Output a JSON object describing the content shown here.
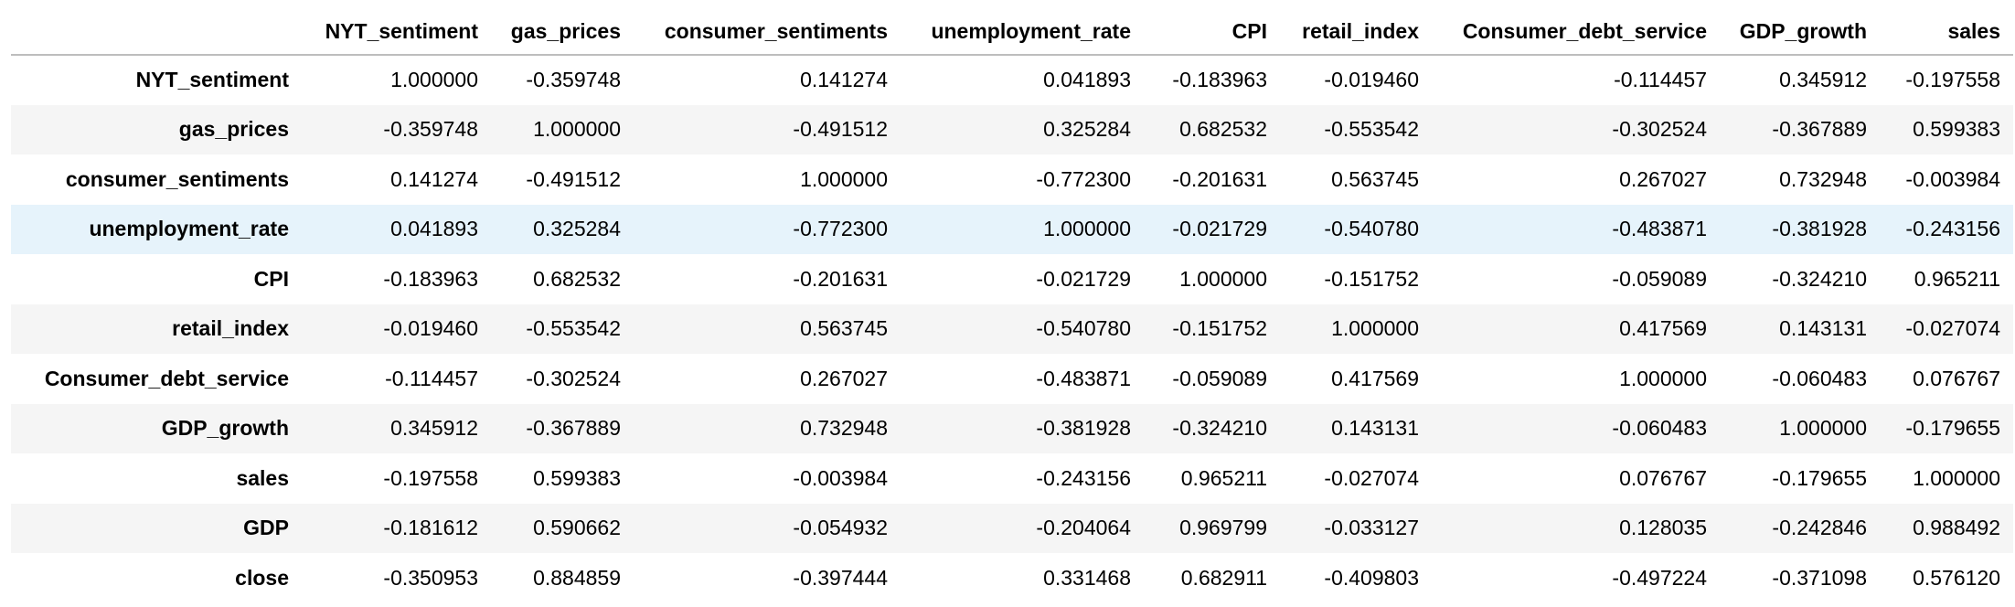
{
  "table": {
    "columns": [
      "",
      "NYT_sentiment",
      "gas_prices",
      "consumer_sentiments",
      "unemployment_rate",
      "CPI",
      "retail_index",
      "Consumer_debt_service",
      "GDP_growth",
      "sales"
    ],
    "highlight_row": 3,
    "rows": [
      {
        "label": "NYT_sentiment",
        "values": [
          "1.000000",
          "-0.359748",
          "0.141274",
          "0.041893",
          "-0.183963",
          "-0.019460",
          "-0.114457",
          "0.345912",
          "-0.197558"
        ]
      },
      {
        "label": "gas_prices",
        "values": [
          "-0.359748",
          "1.000000",
          "-0.491512",
          "0.325284",
          "0.682532",
          "-0.553542",
          "-0.302524",
          "-0.367889",
          "0.599383"
        ]
      },
      {
        "label": "consumer_sentiments",
        "values": [
          "0.141274",
          "-0.491512",
          "1.000000",
          "-0.772300",
          "-0.201631",
          "0.563745",
          "0.267027",
          "0.732948",
          "-0.003984"
        ]
      },
      {
        "label": "unemployment_rate",
        "values": [
          "0.041893",
          "0.325284",
          "-0.772300",
          "1.000000",
          "-0.021729",
          "-0.540780",
          "-0.483871",
          "-0.381928",
          "-0.243156"
        ]
      },
      {
        "label": "CPI",
        "values": [
          "-0.183963",
          "0.682532",
          "-0.201631",
          "-0.021729",
          "1.000000",
          "-0.151752",
          "-0.059089",
          "-0.324210",
          "0.965211"
        ]
      },
      {
        "label": "retail_index",
        "values": [
          "-0.019460",
          "-0.553542",
          "0.563745",
          "-0.540780",
          "-0.151752",
          "1.000000",
          "0.417569",
          "0.143131",
          "-0.027074"
        ]
      },
      {
        "label": "Consumer_debt_service",
        "values": [
          "-0.114457",
          "-0.302524",
          "0.267027",
          "-0.483871",
          "-0.059089",
          "0.417569",
          "1.000000",
          "-0.060483",
          "0.076767"
        ]
      },
      {
        "label": "GDP_growth",
        "values": [
          "0.345912",
          "-0.367889",
          "0.732948",
          "-0.381928",
          "-0.324210",
          "0.143131",
          "-0.060483",
          "1.000000",
          "-0.179655"
        ]
      },
      {
        "label": "sales",
        "values": [
          "-0.197558",
          "0.599383",
          "-0.003984",
          "-0.243156",
          "0.965211",
          "-0.027074",
          "0.076767",
          "-0.179655",
          "1.000000"
        ]
      },
      {
        "label": "GDP",
        "values": [
          "-0.181612",
          "0.590662",
          "-0.054932",
          "-0.204064",
          "0.969799",
          "-0.033127",
          "0.128035",
          "-0.242846",
          "0.988492"
        ]
      },
      {
        "label": "close",
        "values": [
          "-0.350953",
          "0.884859",
          "-0.397444",
          "0.331468",
          "0.682911",
          "-0.409803",
          "-0.497224",
          "-0.371098",
          "0.576120"
        ]
      }
    ]
  }
}
